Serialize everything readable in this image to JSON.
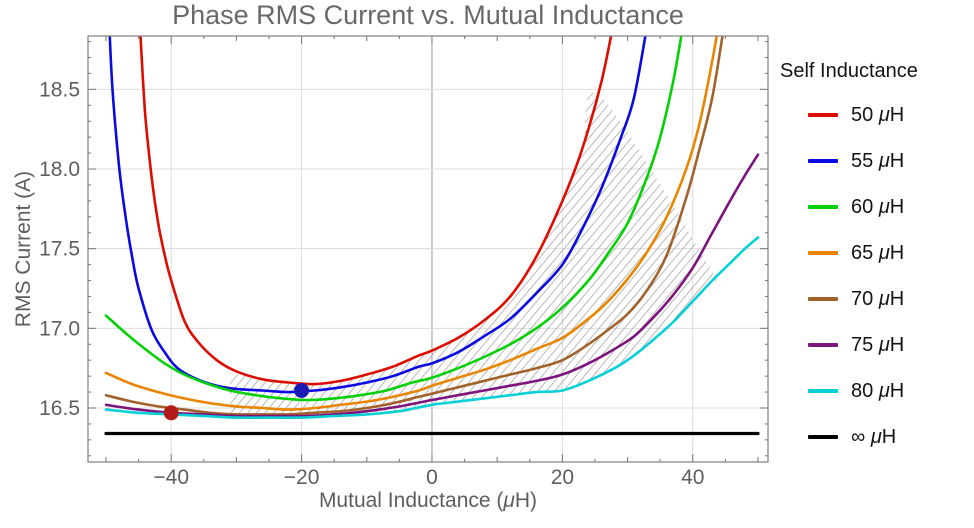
{
  "legend": {
    "title": "Self Inductance",
    "items": [
      {
        "id": "50uh",
        "label": "50 μH",
        "color": "#dc0d00"
      },
      {
        "id": "55uh",
        "label": "55 μH",
        "color": "#0b0be1"
      },
      {
        "id": "60uh",
        "label": "60 μH",
        "color": "#04d104"
      },
      {
        "id": "65uh",
        "label": "65 μH",
        "color": "#e98500"
      },
      {
        "id": "70uh",
        "label": "70 μH",
        "color": "#a2622b"
      },
      {
        "id": "75uh",
        "label": "75 μH",
        "color": "#7d157d"
      },
      {
        "id": "80uh",
        "label": "80 μH",
        "color": "#06d0d6"
      },
      {
        "id": "inf",
        "label": "∞ μH",
        "color": "#000000"
      }
    ]
  },
  "chart_data": {
    "type": "line",
    "title": "Phase RMS Current vs. Mutual Inductance",
    "xlabel": "Mutual Inductance (μH)",
    "ylabel": "RMS Current (A)",
    "xlim": [
      -52.76,
      51.54
    ],
    "ylim": [
      16.161,
      18.835
    ],
    "grid": true,
    "legend_position": "right",
    "x_ticks": {
      "values": [
        -40,
        -20,
        0,
        20,
        40
      ],
      "labels": [
        "−40",
        "−20",
        "0",
        "20",
        "40"
      ],
      "minor_step": 5
    },
    "y_ticks": {
      "values": [
        16.5,
        17.0,
        17.5,
        18.0,
        18.5
      ],
      "labels": [
        "16.5",
        "17.0",
        "17.5",
        "18.0",
        "18.5"
      ],
      "minor_step": 0.1
    },
    "style": {
      "background": "#ffffff",
      "grid_color": "#dcdcdc",
      "zero_axis_color": "#9b9b9b",
      "frame_color": "#7f7f7f",
      "tick_color": "#7f7f7f",
      "text_color": "#5e5e5e",
      "title_color": "#696969",
      "hatch_color": "#9c9c9c"
    },
    "series": [
      {
        "id": "50uh",
        "name": "50 μH",
        "color": "#dc0d00",
        "width": 2.6,
        "points": [
          [
            -44.8,
            18.9
          ],
          [
            -44,
            18.35
          ],
          [
            -43,
            17.95
          ],
          [
            -42,
            17.66
          ],
          [
            -41,
            17.46
          ],
          [
            -40,
            17.3
          ],
          [
            -38,
            17.05
          ],
          [
            -36,
            16.92
          ],
          [
            -33,
            16.8
          ],
          [
            -30,
            16.73
          ],
          [
            -26,
            16.68
          ],
          [
            -22,
            16.66
          ],
          [
            -18,
            16.65
          ],
          [
            -14,
            16.67
          ],
          [
            -10,
            16.71
          ],
          [
            -6,
            16.76
          ],
          [
            -2,
            16.83
          ],
          [
            0,
            16.86
          ],
          [
            4,
            16.94
          ],
          [
            8,
            17.05
          ],
          [
            12,
            17.2
          ],
          [
            16,
            17.45
          ],
          [
            20,
            17.8
          ],
          [
            23,
            18.12
          ],
          [
            26,
            18.55
          ],
          [
            28,
            18.95
          ]
        ]
      },
      {
        "id": "55uh",
        "name": "55 μH",
        "color": "#0b0be1",
        "width": 2.6,
        "points": [
          [
            -49.5,
            18.9
          ],
          [
            -49,
            18.5
          ],
          [
            -48,
            18.02
          ],
          [
            -47,
            17.7
          ],
          [
            -46,
            17.45
          ],
          [
            -45,
            17.25
          ],
          [
            -43,
            16.99
          ],
          [
            -41,
            16.85
          ],
          [
            -39,
            16.75
          ],
          [
            -36,
            16.68
          ],
          [
            -33,
            16.64
          ],
          [
            -30,
            16.62
          ],
          [
            -26,
            16.61
          ],
          [
            -22,
            16.6
          ],
          [
            -18,
            16.61
          ],
          [
            -14,
            16.63
          ],
          [
            -10,
            16.66
          ],
          [
            -6,
            16.7
          ],
          [
            -2,
            16.76
          ],
          [
            0,
            16.78
          ],
          [
            4,
            16.85
          ],
          [
            8,
            16.95
          ],
          [
            12,
            17.06
          ],
          [
            16,
            17.22
          ],
          [
            20,
            17.4
          ],
          [
            23,
            17.62
          ],
          [
            26,
            17.88
          ],
          [
            29,
            18.2
          ],
          [
            31,
            18.45
          ],
          [
            33,
            18.9
          ]
        ]
      },
      {
        "id": "60uh",
        "name": "60 μH",
        "color": "#04d104",
        "width": 2.6,
        "points": [
          [
            -50,
            17.08
          ],
          [
            -47,
            16.97
          ],
          [
            -44,
            16.87
          ],
          [
            -41,
            16.78
          ],
          [
            -38,
            16.71
          ],
          [
            -35,
            16.66
          ],
          [
            -31,
            16.61
          ],
          [
            -27,
            16.58
          ],
          [
            -23,
            16.56
          ],
          [
            -19,
            16.55
          ],
          [
            -15,
            16.56
          ],
          [
            -11,
            16.58
          ],
          [
            -7,
            16.61
          ],
          [
            -3,
            16.66
          ],
          [
            0,
            16.69
          ],
          [
            4,
            16.75
          ],
          [
            8,
            16.82
          ],
          [
            12,
            16.9
          ],
          [
            16,
            17.0
          ],
          [
            20,
            17.13
          ],
          [
            24,
            17.3
          ],
          [
            27,
            17.47
          ],
          [
            30,
            17.66
          ],
          [
            33,
            17.95
          ],
          [
            35,
            18.2
          ],
          [
            37,
            18.55
          ],
          [
            38.5,
            18.9
          ]
        ]
      },
      {
        "id": "65uh",
        "name": "65 μH",
        "color": "#e98500",
        "width": 2.6,
        "points": [
          [
            -50,
            16.72
          ],
          [
            -46,
            16.65
          ],
          [
            -42,
            16.6
          ],
          [
            -38,
            16.56
          ],
          [
            -34,
            16.53
          ],
          [
            -30,
            16.51
          ],
          [
            -26,
            16.5
          ],
          [
            -22,
            16.49
          ],
          [
            -18,
            16.5
          ],
          [
            -14,
            16.52
          ],
          [
            -10,
            16.54
          ],
          [
            -6,
            16.57
          ],
          [
            -2,
            16.61
          ],
          [
            0,
            16.64
          ],
          [
            4,
            16.69
          ],
          [
            8,
            16.74
          ],
          [
            12,
            16.8
          ],
          [
            16,
            16.87
          ],
          [
            20,
            16.94
          ],
          [
            24,
            17.06
          ],
          [
            27,
            17.17
          ],
          [
            30,
            17.31
          ],
          [
            33,
            17.48
          ],
          [
            36,
            17.7
          ],
          [
            39,
            18.0
          ],
          [
            41,
            18.28
          ],
          [
            43,
            18.68
          ],
          [
            44,
            18.92
          ]
        ]
      },
      {
        "id": "70uh",
        "name": "70 μH",
        "color": "#a2622b",
        "width": 2.6,
        "points": [
          [
            -50,
            16.58
          ],
          [
            -46,
            16.54
          ],
          [
            -42,
            16.51
          ],
          [
            -38,
            16.49
          ],
          [
            -34,
            16.47
          ],
          [
            -30,
            16.46
          ],
          [
            -26,
            16.46
          ],
          [
            -22,
            16.46
          ],
          [
            -18,
            16.47
          ],
          [
            -14,
            16.48
          ],
          [
            -10,
            16.5
          ],
          [
            -6,
            16.53
          ],
          [
            -2,
            16.57
          ],
          [
            0,
            16.59
          ],
          [
            4,
            16.63
          ],
          [
            8,
            16.67
          ],
          [
            12,
            16.71
          ],
          [
            16,
            16.75
          ],
          [
            20,
            16.8
          ],
          [
            24,
            16.9
          ],
          [
            27,
            16.99
          ],
          [
            30,
            17.09
          ],
          [
            33,
            17.24
          ],
          [
            36,
            17.46
          ],
          [
            39,
            17.82
          ],
          [
            41,
            18.12
          ],
          [
            43,
            18.45
          ],
          [
            44.8,
            18.9
          ]
        ]
      },
      {
        "id": "75uh",
        "name": "75 μH",
        "color": "#7d157d",
        "width": 2.6,
        "points": [
          [
            -50,
            16.52
          ],
          [
            -45,
            16.49
          ],
          [
            -40,
            16.47
          ],
          [
            -35,
            16.46
          ],
          [
            -30,
            16.45
          ],
          [
            -25,
            16.45
          ],
          [
            -20,
            16.45
          ],
          [
            -15,
            16.46
          ],
          [
            -10,
            16.48
          ],
          [
            -5,
            16.51
          ],
          [
            0,
            16.55
          ],
          [
            4,
            16.58
          ],
          [
            8,
            16.61
          ],
          [
            12,
            16.64
          ],
          [
            16,
            16.67
          ],
          [
            20,
            16.71
          ],
          [
            24,
            16.78
          ],
          [
            28,
            16.87
          ],
          [
            31,
            16.95
          ],
          [
            34,
            17.07
          ],
          [
            37,
            17.21
          ],
          [
            40,
            17.38
          ],
          [
            43,
            17.6
          ],
          [
            46,
            17.82
          ],
          [
            48,
            17.96
          ],
          [
            50,
            18.09
          ]
        ]
      },
      {
        "id": "80uh",
        "name": "80 μH",
        "color": "#06d0d6",
        "width": 2.6,
        "points": [
          [
            -50,
            16.49
          ],
          [
            -45,
            16.47
          ],
          [
            -40,
            16.46
          ],
          [
            -35,
            16.45
          ],
          [
            -30,
            16.44
          ],
          [
            -25,
            16.44
          ],
          [
            -20,
            16.44
          ],
          [
            -15,
            16.45
          ],
          [
            -10,
            16.46
          ],
          [
            -5,
            16.48
          ],
          [
            0,
            16.52
          ],
          [
            4,
            16.54
          ],
          [
            8,
            16.56
          ],
          [
            12,
            16.58
          ],
          [
            16,
            16.6
          ],
          [
            20,
            16.61
          ],
          [
            24,
            16.67
          ],
          [
            28,
            16.75
          ],
          [
            31,
            16.83
          ],
          [
            34,
            16.93
          ],
          [
            37,
            17.04
          ],
          [
            40,
            17.17
          ],
          [
            43,
            17.3
          ],
          [
            46,
            17.42
          ],
          [
            48,
            17.5
          ],
          [
            50,
            17.57
          ]
        ]
      },
      {
        "id": "inf",
        "name": "∞ μH",
        "color": "#000000",
        "width": 3.2,
        "points": [
          [
            -50,
            16.34
          ],
          [
            50,
            16.34
          ]
        ]
      }
    ],
    "markers": [
      {
        "id": "red-dot",
        "x": -40,
        "y": 16.47,
        "color": "#b31b1b",
        "radius": 7.5
      },
      {
        "id": "blue-dot",
        "x": -20,
        "y": 16.61,
        "color": "#1b1bb3",
        "radius": 7.5
      }
    ],
    "hatch_region": {
      "pattern": "diagonal-lines",
      "boundary": [
        [
          -31,
          16.72
        ],
        [
          -26,
          16.68
        ],
        [
          -22,
          16.66
        ],
        [
          -18,
          16.65
        ],
        [
          -14,
          16.67
        ],
        [
          -10,
          16.71
        ],
        [
          -6,
          16.76
        ],
        [
          -2,
          16.83
        ],
        [
          0,
          16.86
        ],
        [
          4,
          16.94
        ],
        [
          8,
          17.05
        ],
        [
          12,
          17.2
        ],
        [
          16,
          17.45
        ],
        [
          20,
          17.8
        ],
        [
          23,
          18.12
        ],
        [
          26,
          18.45
        ],
        [
          43.5,
          17.32
        ],
        [
          43,
          17.3
        ],
        [
          40,
          17.17
        ],
        [
          37,
          17.04
        ],
        [
          34,
          16.93
        ],
        [
          31,
          16.83
        ],
        [
          28,
          16.75
        ],
        [
          24,
          16.67
        ],
        [
          20,
          16.61
        ],
        [
          16,
          16.6
        ],
        [
          12,
          16.58
        ],
        [
          8,
          16.56
        ],
        [
          4,
          16.54
        ],
        [
          0,
          16.52
        ],
        [
          -5,
          16.48
        ],
        [
          -10,
          16.46
        ],
        [
          -15,
          16.45
        ],
        [
          -20,
          16.44
        ],
        [
          -25,
          16.44
        ],
        [
          -31,
          16.44
        ]
      ]
    }
  }
}
